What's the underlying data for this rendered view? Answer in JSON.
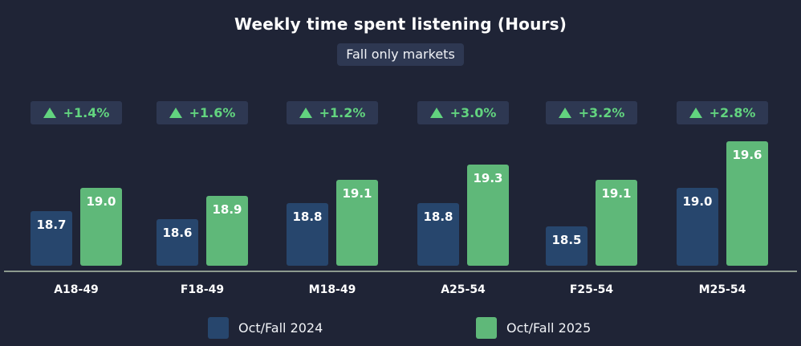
{
  "header": {
    "title": "Weekly time spent listening (Hours)",
    "subtitle": "Fall only markets"
  },
  "colors": {
    "background": "#1f2436",
    "series_2024": "#27466d",
    "series_2025": "#5fb879",
    "change_text": "#62d47f",
    "badge_bg": "#2e3852",
    "axis": "#8d9a8f"
  },
  "groups": [
    {
      "label": "A18-49",
      "change": "+1.4%",
      "v2024": "18.7",
      "v2025": "19.0"
    },
    {
      "label": "F18-49",
      "change": "+1.6%",
      "v2024": "18.6",
      "v2025": "18.9"
    },
    {
      "label": "M18-49",
      "change": "+1.2%",
      "v2024": "18.8",
      "v2025": "19.1"
    },
    {
      "label": "A25-54",
      "change": "+3.0%",
      "v2024": "18.8",
      "v2025": "19.3"
    },
    {
      "label": "F25-54",
      "change": "+3.2%",
      "v2024": "18.5",
      "v2025": "19.1"
    },
    {
      "label": "M25-54",
      "change": "+2.8%",
      "v2024": "19.0",
      "v2025": "19.6"
    }
  ],
  "legend": [
    {
      "label": "Oct/Fall 2024",
      "color": "#27466d"
    },
    {
      "label": "Oct/Fall 2025",
      "color": "#5fb879"
    }
  ],
  "chart_data": {
    "type": "bar",
    "title": "Weekly time spent listening (Hours)",
    "subtitle": "Fall only markets",
    "categories": [
      "A18-49",
      "F18-49",
      "M18-49",
      "A25-54",
      "F25-54",
      "M25-54"
    ],
    "series": [
      {
        "name": "Oct/Fall 2024",
        "values": [
          18.7,
          18.6,
          18.8,
          18.8,
          18.5,
          19.0
        ],
        "color": "#27466d"
      },
      {
        "name": "Oct/Fall 2025",
        "values": [
          19.0,
          18.9,
          19.1,
          19.3,
          19.1,
          19.6
        ],
        "color": "#5fb879"
      }
    ],
    "annotations": [
      "+1.4%",
      "+1.6%",
      "+1.2%",
      "+3.0%",
      "+3.2%",
      "+2.8%"
    ],
    "xlabel": "",
    "ylabel": "",
    "ylim": [
      18.0,
      19.7
    ],
    "grid": false,
    "legend_position": "bottom",
    "data_labels": true
  }
}
